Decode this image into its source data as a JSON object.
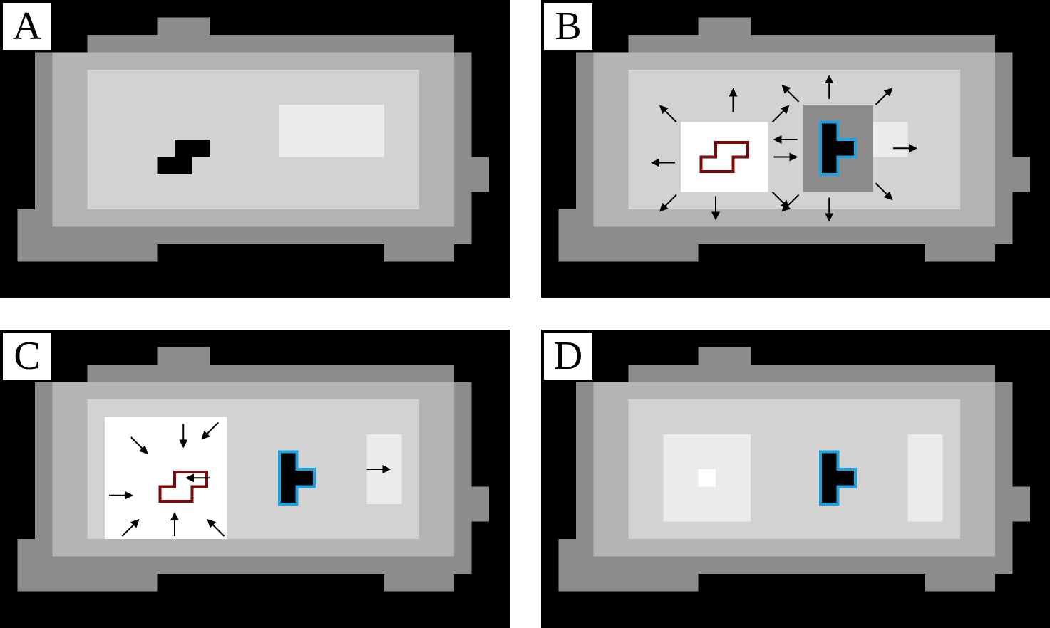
{
  "panels": [
    {
      "label": "A",
      "id": "A",
      "lit": null,
      "highlight": null,
      "red": false,
      "blue": false,
      "arrows": []
    },
    {
      "label": "B",
      "id": "B",
      "lit": "B",
      "highlight": "B",
      "red": true,
      "blue": true,
      "arrows": "B"
    },
    {
      "label": "C",
      "id": "C",
      "lit": "C",
      "highlight": "C",
      "red": true,
      "blue": true,
      "arrows": "C"
    },
    {
      "label": "D",
      "id": "D",
      "lit": "D",
      "highlight": null,
      "red": false,
      "blue": true,
      "arrows": []
    }
  ],
  "colors": {
    "background": "#000000",
    "region_out": "#8c8c8c",
    "region_mid": "#b4b4b4",
    "region_in": "#d2d2d2",
    "peak": "#ebebeb",
    "active_region": "#ffffff",
    "red_outline": "#7a0a0a",
    "blue_outline": "#1aa3e0",
    "arrow": "#000000"
  }
}
